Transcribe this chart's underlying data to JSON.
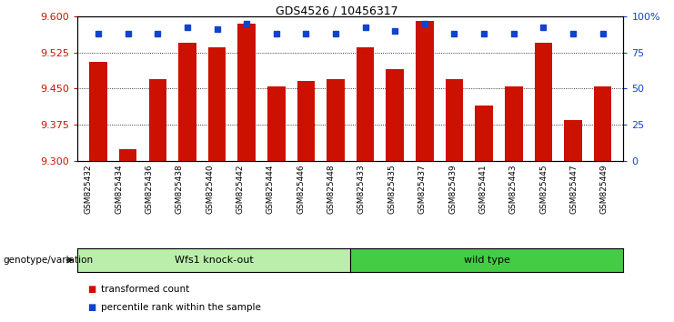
{
  "title": "GDS4526 / 10456317",
  "samples": [
    "GSM825432",
    "GSM825434",
    "GSM825436",
    "GSM825438",
    "GSM825440",
    "GSM825442",
    "GSM825444",
    "GSM825446",
    "GSM825448",
    "GSM825433",
    "GSM825435",
    "GSM825437",
    "GSM825439",
    "GSM825441",
    "GSM825443",
    "GSM825445",
    "GSM825447",
    "GSM825449"
  ],
  "bar_values": [
    9.505,
    9.325,
    9.47,
    9.545,
    9.535,
    9.585,
    9.455,
    9.465,
    9.47,
    9.535,
    9.49,
    9.59,
    9.47,
    9.415,
    9.455,
    9.545,
    9.385,
    9.455
  ],
  "percentile_values": [
    88,
    88,
    88,
    92,
    91,
    95,
    88,
    88,
    88,
    92,
    90,
    95,
    88,
    88,
    88,
    92,
    88,
    88
  ],
  "ymin": 9.3,
  "ymax": 9.6,
  "bar_color": "#cc1100",
  "percentile_color": "#1144cc",
  "group1_label": "Wfs1 knock-out",
  "group2_label": "wild type",
  "group1_count": 9,
  "group2_count": 9,
  "group1_color": "#bbeeaa",
  "group2_color": "#44cc44",
  "genotype_label": "genotype/variation",
  "legend_bar": "transformed count",
  "legend_pct": "percentile rank within the sample",
  "yticks": [
    9.3,
    9.375,
    9.45,
    9.525,
    9.6
  ],
  "right_yticks": [
    0,
    25,
    50,
    75,
    100
  ],
  "background_color": "#ffffff",
  "plot_bg": "#ffffff",
  "gridline_color": "#000000",
  "tick_bg": "#dddddd"
}
